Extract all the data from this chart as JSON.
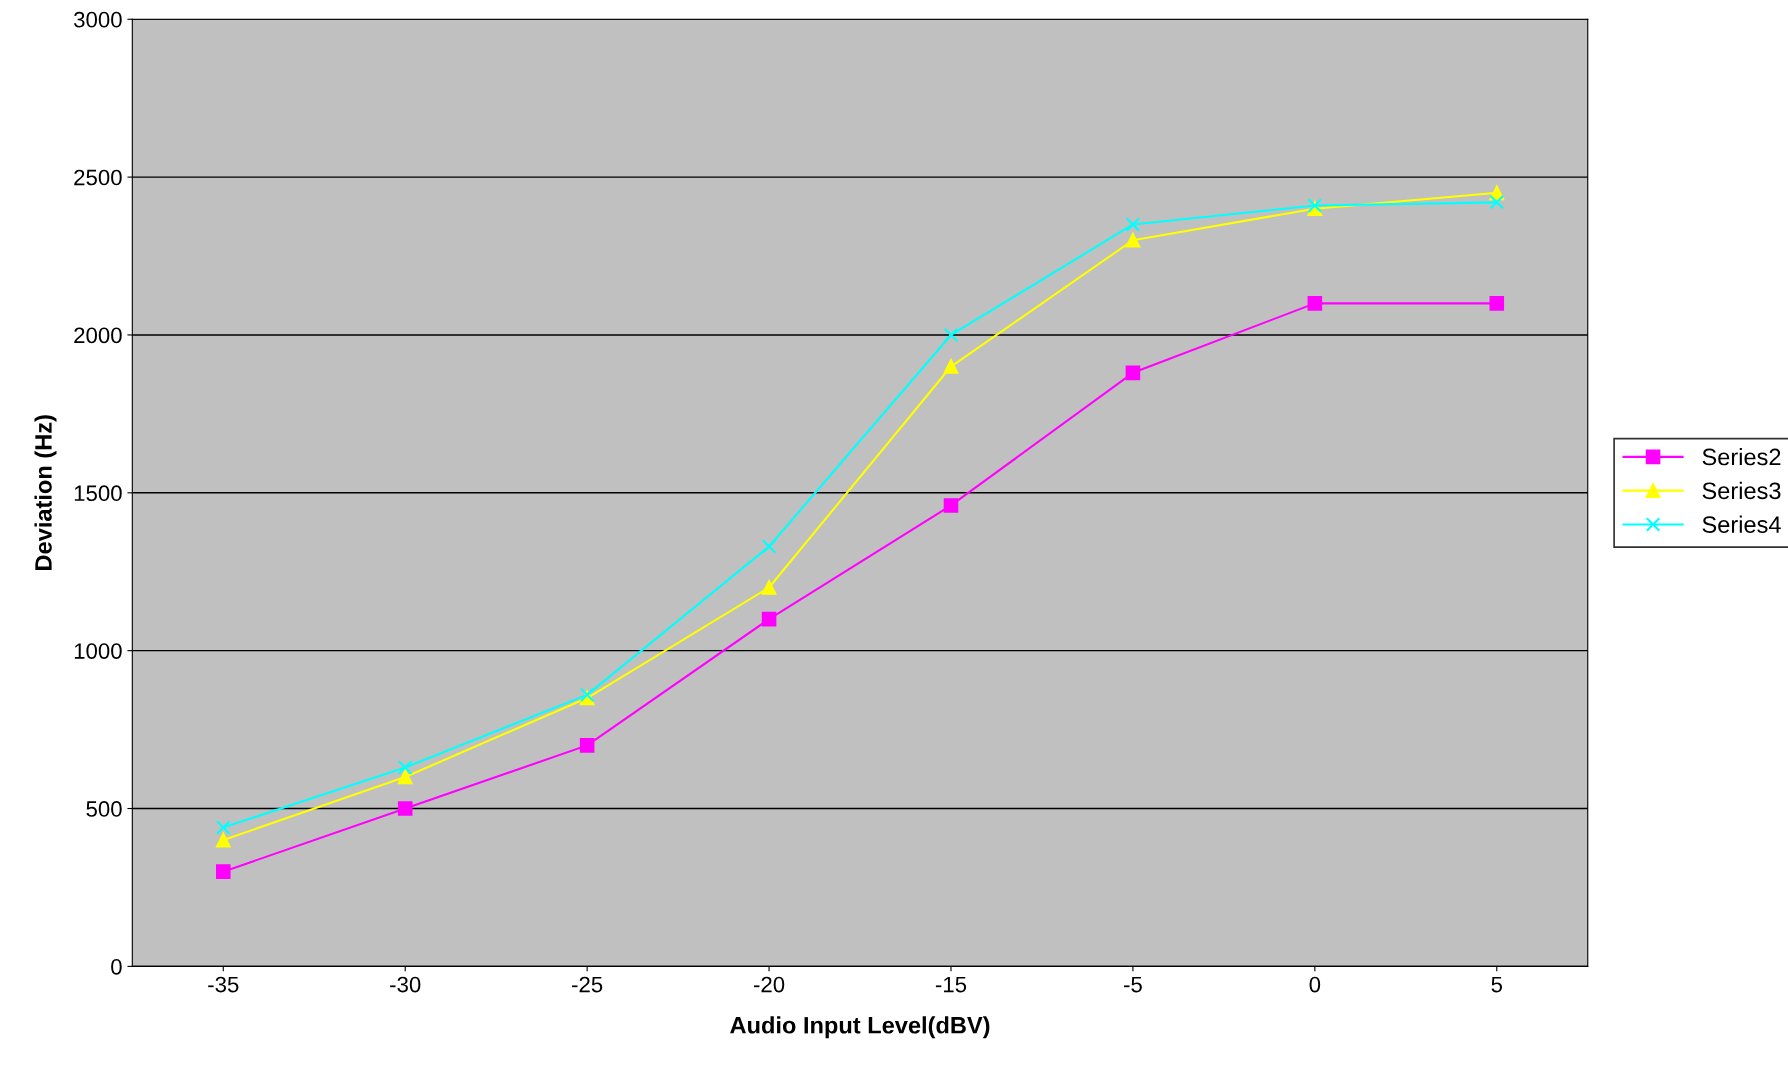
{
  "chart_data": {
    "type": "line",
    "xlabel": "Audio Input Level(dBV)",
    "ylabel": "Deviation (Hz)",
    "categories": [
      "-35",
      "-30",
      "-25",
      "-20",
      "-15",
      "-5",
      "0",
      "5"
    ],
    "series": [
      {
        "name": "Series2",
        "color": "#ff00ff",
        "marker": "square",
        "values": [
          300,
          500,
          700,
          1100,
          1460,
          1880,
          2100,
          2100
        ]
      },
      {
        "name": "Series3",
        "color": "#ffff00",
        "marker": "triangle",
        "values": [
          400,
          600,
          850,
          1200,
          1900,
          2300,
          2400,
          2450
        ]
      },
      {
        "name": "Series4",
        "color": "#00ffff",
        "marker": "cross",
        "values": [
          440,
          630,
          860,
          1330,
          2000,
          2350,
          2410,
          2420
        ]
      }
    ],
    "ylim": [
      0,
      3000
    ],
    "yticks": [
      0,
      500,
      1000,
      1500,
      2000,
      2500,
      3000
    ],
    "grid": "y",
    "legend": "right",
    "line_style": "solid"
  }
}
